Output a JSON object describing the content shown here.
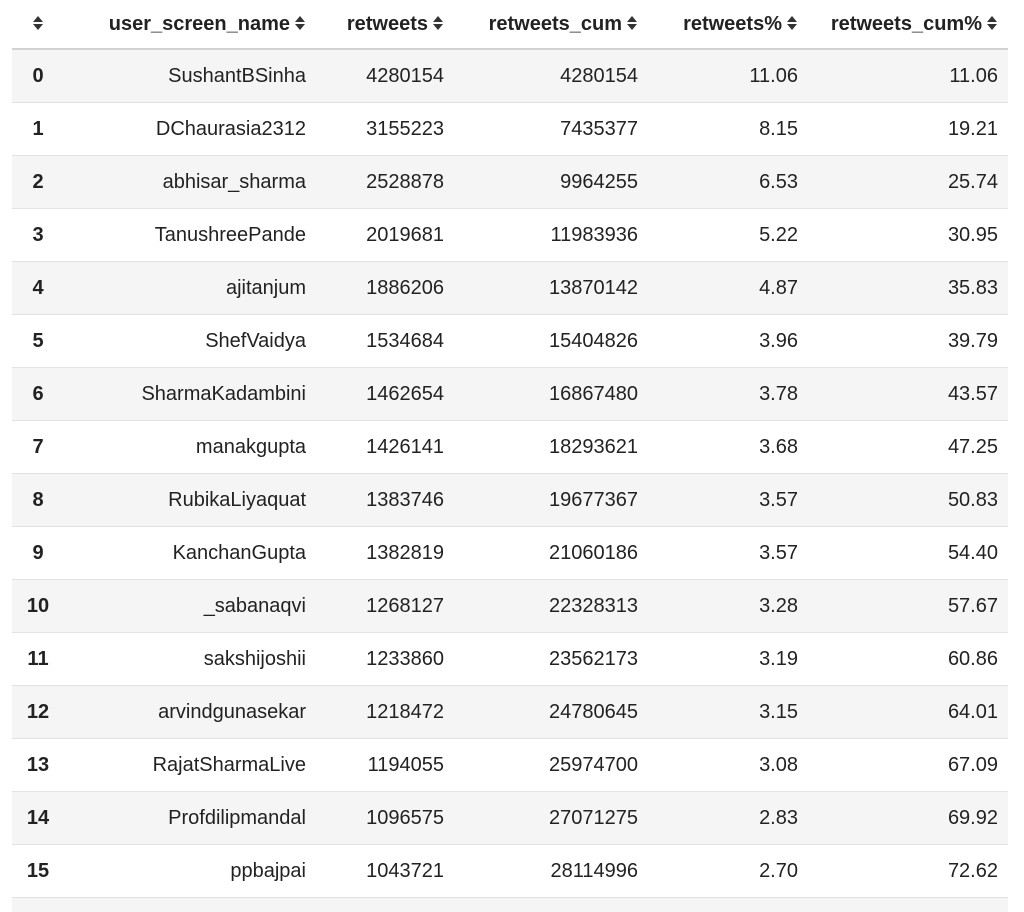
{
  "table": {
    "columns": [
      "",
      "user_screen_name",
      "retweets",
      "retweets_cum",
      "retweets%",
      "retweets_cum%"
    ],
    "sort_icon": "sort-arrows-icon",
    "rows": [
      [
        "0",
        "SushantBSinha",
        "4280154",
        "4280154",
        "11.06",
        "11.06"
      ],
      [
        "1",
        "DChaurasia2312",
        "3155223",
        "7435377",
        "8.15",
        "19.21"
      ],
      [
        "2",
        "abhisar_sharma",
        "2528878",
        "9964255",
        "6.53",
        "25.74"
      ],
      [
        "3",
        "TanushreePande",
        "2019681",
        "11983936",
        "5.22",
        "30.95"
      ],
      [
        "4",
        "ajitanjum",
        "1886206",
        "13870142",
        "4.87",
        "35.83"
      ],
      [
        "5",
        "ShefVaidya",
        "1534684",
        "15404826",
        "3.96",
        "39.79"
      ],
      [
        "6",
        "SharmaKadambini",
        "1462654",
        "16867480",
        "3.78",
        "43.57"
      ],
      [
        "7",
        "manakgupta",
        "1426141",
        "18293621",
        "3.68",
        "47.25"
      ],
      [
        "8",
        "RubikaLiyaquat",
        "1383746",
        "19677367",
        "3.57",
        "50.83"
      ],
      [
        "9",
        "KanchanGupta",
        "1382819",
        "21060186",
        "3.57",
        "54.40"
      ],
      [
        "10",
        "_sabanaqvi",
        "1268127",
        "22328313",
        "3.28",
        "57.67"
      ],
      [
        "11",
        "sakshijoshii",
        "1233860",
        "23562173",
        "3.19",
        "60.86"
      ],
      [
        "12",
        "arvindgunasekar",
        "1218472",
        "24780645",
        "3.15",
        "64.01"
      ],
      [
        "13",
        "RajatSharmaLive",
        "1194055",
        "25974700",
        "3.08",
        "67.09"
      ],
      [
        "14",
        "Profdilipmandal",
        "1096575",
        "27071275",
        "2.83",
        "69.92"
      ],
      [
        "15",
        "ppbajpai",
        "1043721",
        "28114996",
        "2.70",
        "72.62"
      ]
    ]
  }
}
